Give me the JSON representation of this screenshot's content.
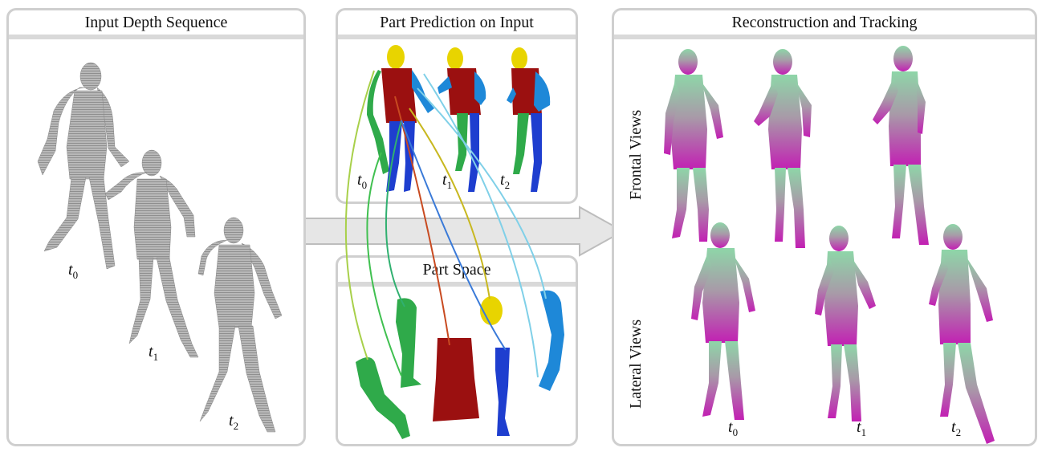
{
  "panels": {
    "input": {
      "title": "Input Depth Sequence"
    },
    "prediction": {
      "title": "Part Prediction on Input"
    },
    "part_space": {
      "title": "Part Space"
    },
    "reconstruction": {
      "title": "Reconstruction and Tracking",
      "frontal_label": "Frontal Views",
      "lateral_label": "Lateral Views"
    }
  },
  "time_labels": {
    "t0": {
      "base": "t",
      "sub": "0"
    },
    "t1": {
      "base": "t",
      "sub": "1"
    },
    "t2": {
      "base": "t",
      "sub": "2"
    }
  },
  "colors": {
    "panel_border": "#cfcfcf",
    "depth_gray": "#9a9a9a",
    "head_yellow": "#e8d400",
    "torso_red": "#9b1010",
    "left_arm_green": "#2faa4a",
    "right_arm_blue": "#1e88d8",
    "legs_blue": "#1e3ecf",
    "mesh_green": "#8ed6a8",
    "mesh_magenta": "#c21fb3",
    "arrow_gray": "#dcdcdc"
  }
}
